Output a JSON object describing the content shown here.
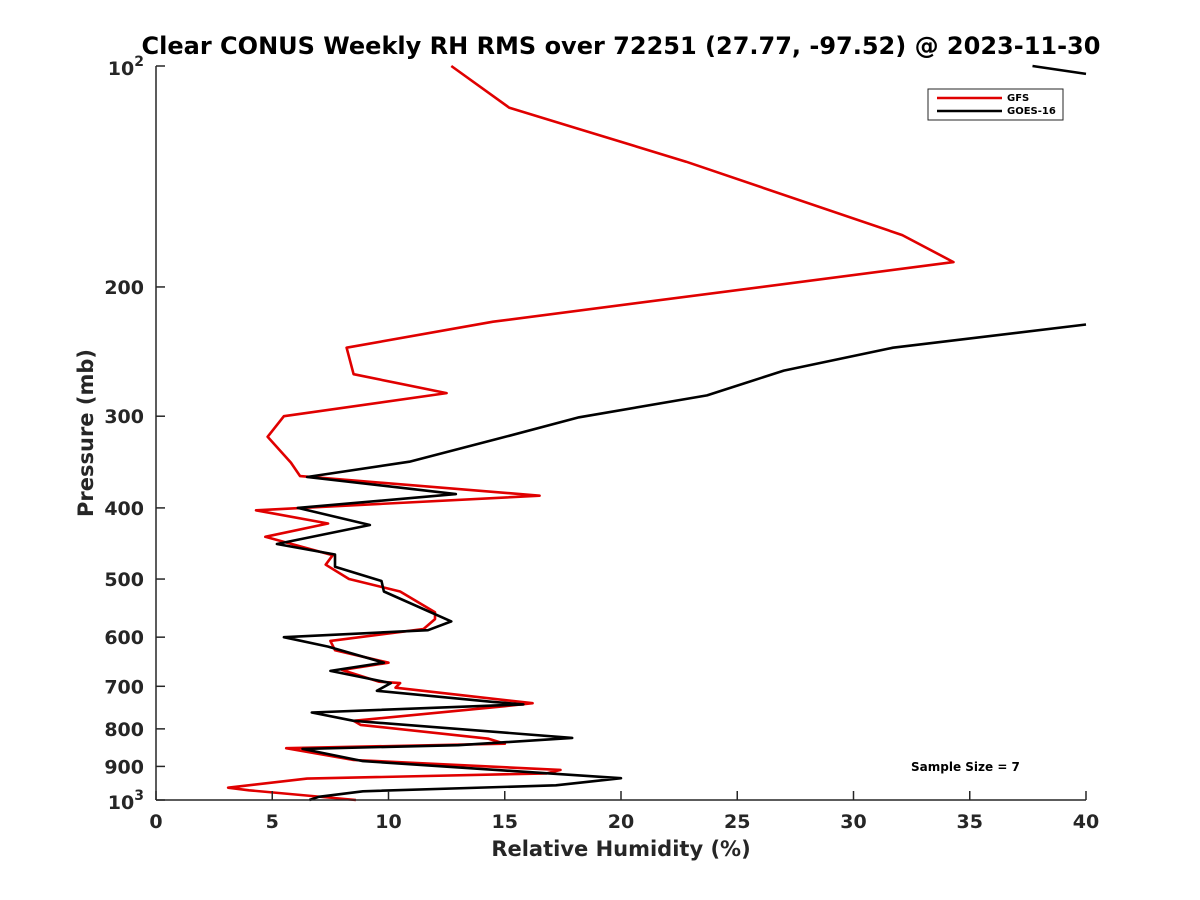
{
  "chart_data": {
    "type": "line",
    "title": "Clear CONUS Weekly RH RMS over 72251 (27.77, -97.52) @ 2023-11-30",
    "xlabel": "Relative Humidity (%)",
    "ylabel": "Pressure (mb)",
    "xlim": [
      0,
      40
    ],
    "ylim": [
      100,
      1000
    ],
    "yscale": "log",
    "y_reversed": true,
    "grid": false,
    "legend_position": "top-right",
    "x_ticks": [
      "0",
      "5",
      "10",
      "15",
      "20",
      "25",
      "30",
      "35",
      "40"
    ],
    "y_ticks": [
      {
        "value": 100,
        "base": "10",
        "exp": "2"
      },
      {
        "value": 200,
        "label": "200"
      },
      {
        "value": 300,
        "label": "300"
      },
      {
        "value": 400,
        "label": "400"
      },
      {
        "value": 500,
        "label": "500"
      },
      {
        "value": 600,
        "label": "600"
      },
      {
        "value": 700,
        "label": "700"
      },
      {
        "value": 800,
        "label": "800"
      },
      {
        "value": 900,
        "label": "900"
      },
      {
        "value": 1000,
        "base": "10",
        "exp": "3"
      }
    ],
    "series": [
      {
        "name": "GFS",
        "color": "#e00000",
        "points": [
          [
            8.6,
            1000
          ],
          [
            4.0,
            970
          ],
          [
            3.1,
            962
          ],
          [
            6.5,
            935
          ],
          [
            16.8,
            920
          ],
          [
            17.4,
            910
          ],
          [
            8.5,
            882
          ],
          [
            5.6,
            850
          ],
          [
            15.0,
            838
          ],
          [
            14.3,
            825
          ],
          [
            8.8,
            790
          ],
          [
            8.5,
            780
          ],
          [
            15.0,
            745
          ],
          [
            16.2,
            738
          ],
          [
            10.3,
            703
          ],
          [
            10.5,
            693
          ],
          [
            9.6,
            690
          ],
          [
            8.0,
            665
          ],
          [
            10.0,
            650
          ],
          [
            7.7,
            625
          ],
          [
            7.5,
            607
          ],
          [
            11.5,
            585
          ],
          [
            12.0,
            567
          ],
          [
            12.0,
            555
          ],
          [
            10.5,
            520
          ],
          [
            8.3,
            500
          ],
          [
            7.3,
            478
          ],
          [
            7.6,
            464
          ],
          [
            4.7,
            438
          ],
          [
            7.4,
            420
          ],
          [
            4.3,
            403
          ],
          [
            16.5,
            385
          ],
          [
            6.2,
            362
          ],
          [
            5.8,
            347
          ],
          [
            4.8,
            320
          ],
          [
            5.5,
            300
          ],
          [
            12.5,
            279
          ],
          [
            8.5,
            263
          ],
          [
            8.2,
            242
          ],
          [
            14.5,
            223
          ],
          [
            34.3,
            185
          ],
          [
            32.1,
            170
          ],
          [
            22.8,
            135
          ],
          [
            15.2,
            114
          ],
          [
            12.7,
            100
          ]
        ]
      },
      {
        "name": "GOES-16",
        "color": "#000000",
        "points": [
          [
            6.6,
            1000
          ],
          [
            7.0,
            990
          ],
          [
            8.9,
            973
          ],
          [
            17.2,
            955
          ],
          [
            20.0,
            934
          ],
          [
            8.9,
            885
          ],
          [
            6.3,
            852
          ],
          [
            13.0,
            842
          ],
          [
            17.9,
            823
          ],
          [
            8.5,
            780
          ],
          [
            6.7,
            760
          ],
          [
            15.8,
            741
          ],
          [
            14.5,
            735
          ],
          [
            9.5,
            710
          ],
          [
            10.1,
            693
          ],
          [
            7.5,
            667
          ],
          [
            9.8,
            650
          ],
          [
            7.4,
            618
          ],
          [
            5.5,
            600
          ],
          [
            11.7,
            587
          ],
          [
            12.7,
            571
          ],
          [
            9.8,
            520
          ],
          [
            9.7,
            503
          ],
          [
            7.7,
            481
          ],
          [
            7.7,
            463
          ],
          [
            5.2,
            448
          ],
          [
            9.2,
            422
          ],
          [
            6.1,
            400
          ],
          [
            12.9,
            383
          ],
          [
            6.5,
            363
          ],
          [
            10.9,
            346
          ],
          [
            14.7,
            322
          ],
          [
            18.2,
            301
          ],
          [
            23.7,
            281
          ],
          [
            27.0,
            260
          ],
          [
            31.7,
            242
          ],
          [
            40.0,
            225
          ]
        ]
      },
      {
        "name": "",
        "color": "#000000",
        "points": [
          [
            37.7,
            100
          ],
          [
            40.0,
            102.5
          ]
        ]
      }
    ],
    "annotations": [
      "Sample Size = 7"
    ]
  }
}
